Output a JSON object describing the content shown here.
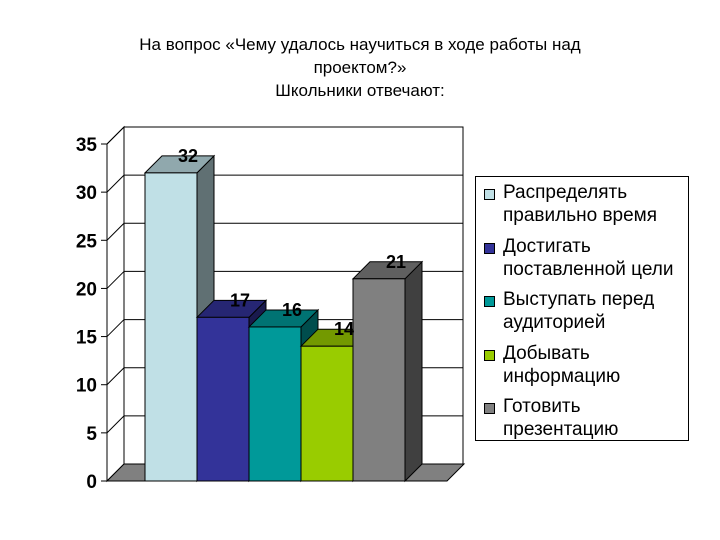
{
  "title_lines": [
    "На вопрос «Чему удалось научиться в ходе работы над",
    "проектом?»",
    "Школьники отвечают:"
  ],
  "chart_data": {
    "type": "bar",
    "title": "На вопрос «Чему удалось научиться в ходе работы над проектом?» Школьники отвечают:",
    "categories": [
      "Распределять правильно время",
      "Достигать поставленной цели",
      "Выступать перед аудиторией",
      "Добывать информацию",
      "Готовить презентацию"
    ],
    "values": [
      32,
      17,
      16,
      14,
      21
    ],
    "value_labels": [
      "32",
      "17",
      "16",
      "14",
      "21"
    ],
    "colors": [
      "#c0e0e6",
      "#333399",
      "#009999",
      "#99cc00",
      "#808080"
    ],
    "ylim": [
      0,
      35
    ],
    "yticks": [
      "0",
      "5",
      "10",
      "15",
      "20",
      "25",
      "30",
      "35"
    ],
    "legend_position": "right",
    "gridlines": true,
    "style": "3d"
  }
}
